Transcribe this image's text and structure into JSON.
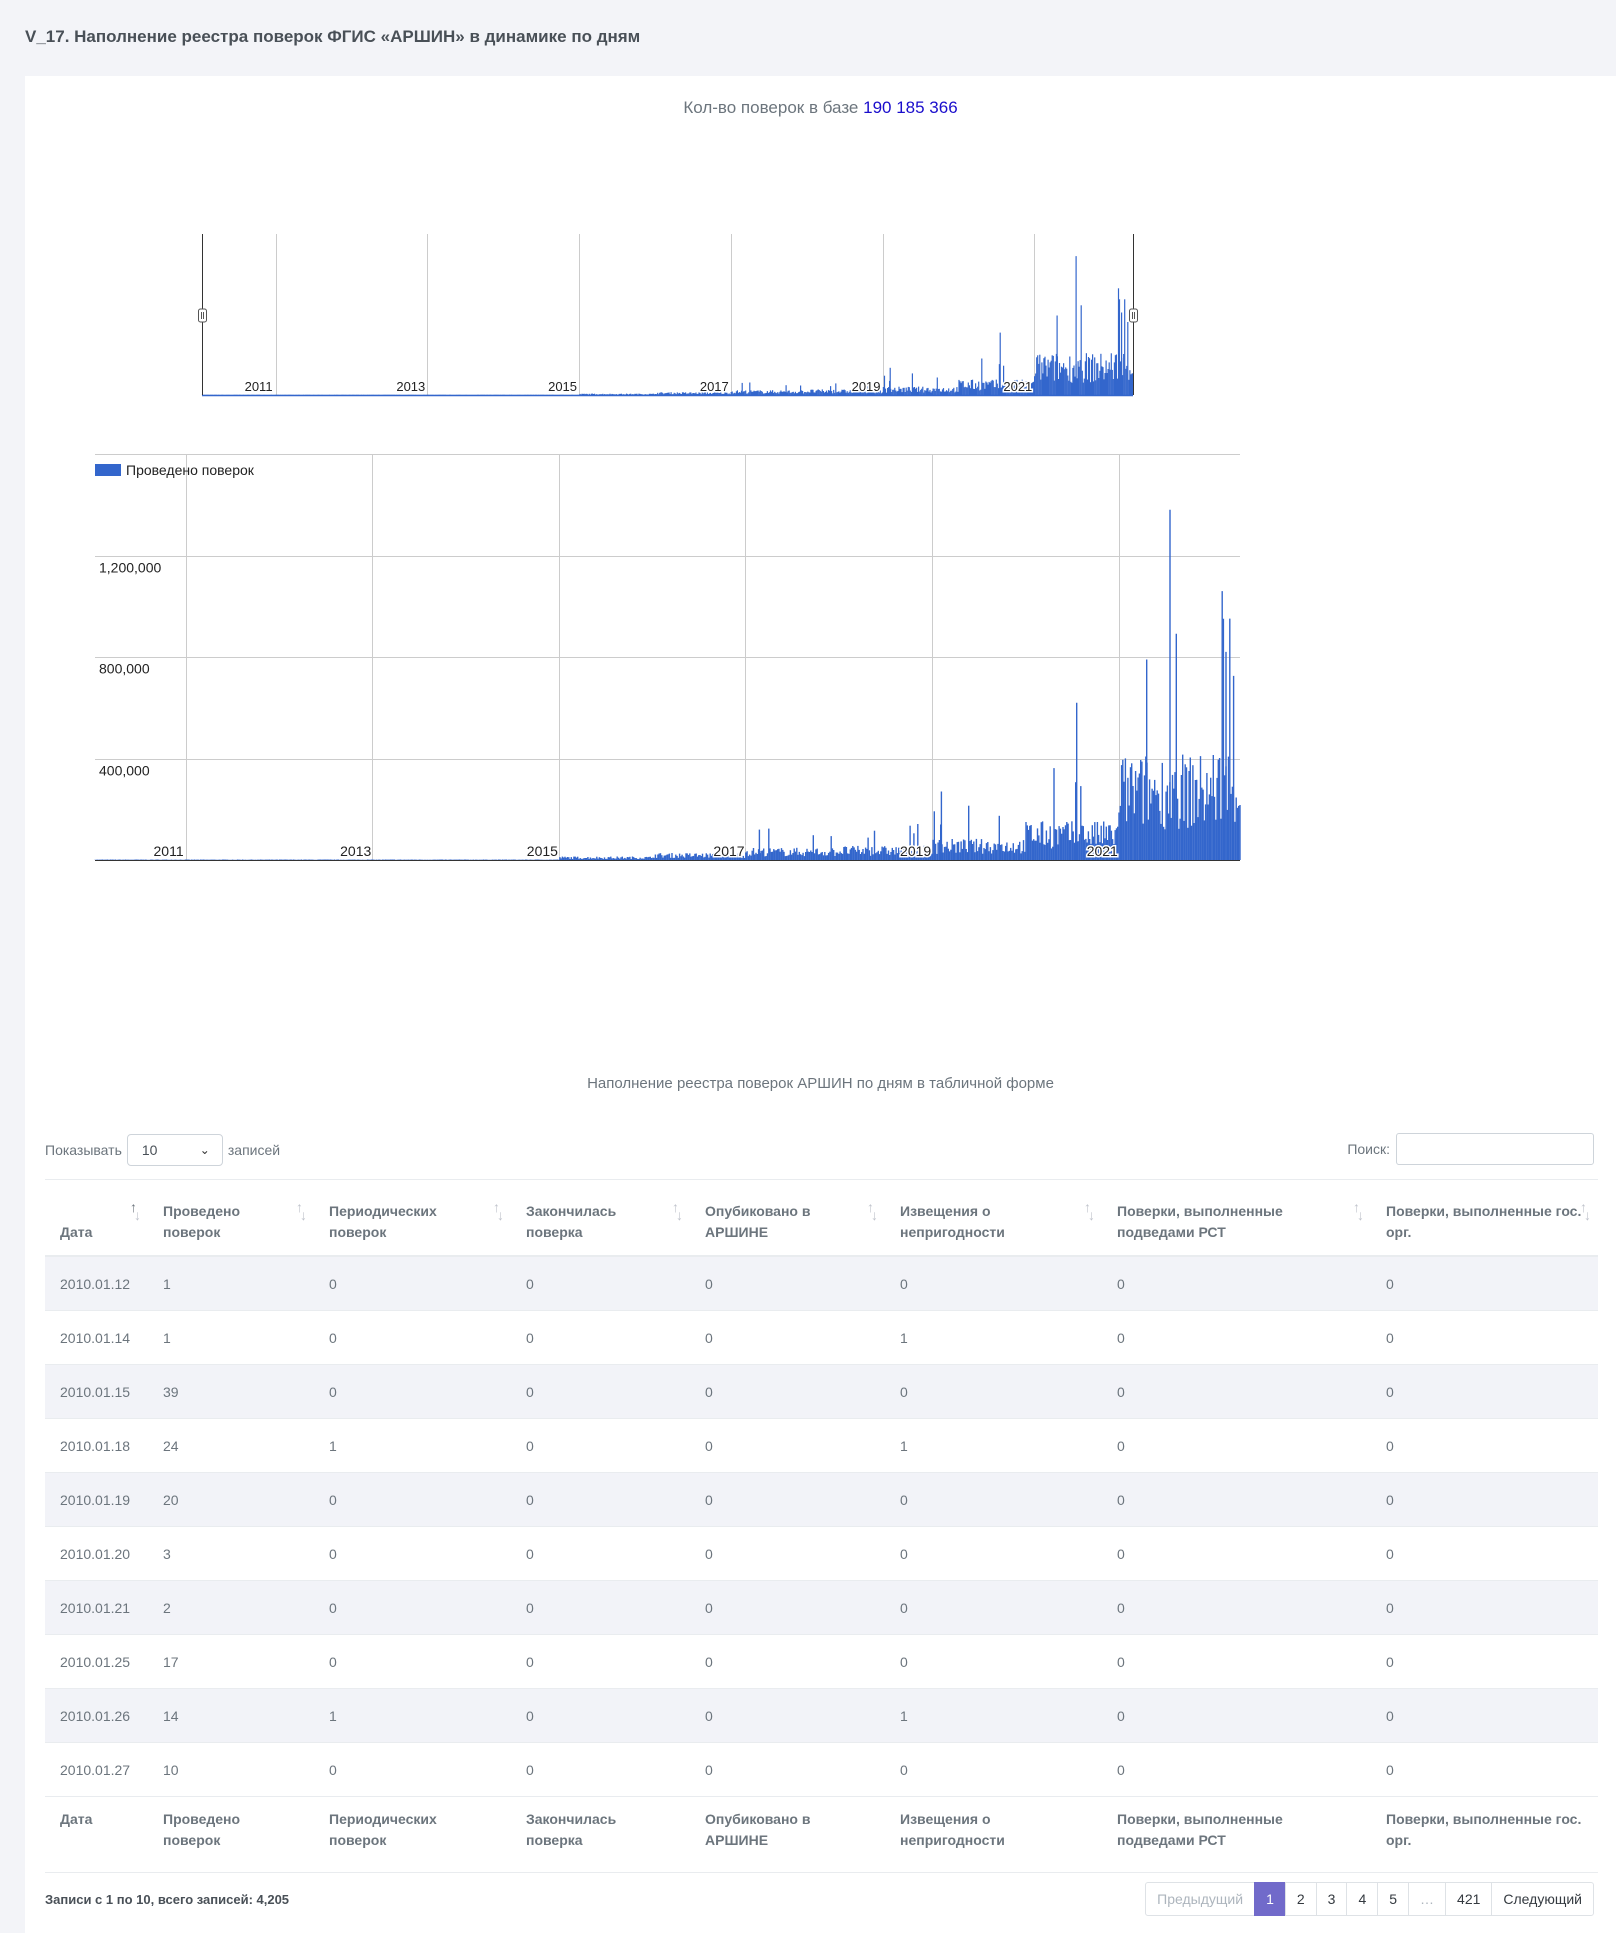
{
  "page_title": "V_17. Наполнение реестра поверок ФГИС «АРШИН» в динамике по дням",
  "count": {
    "label": "Кол-во поверок в базе",
    "value": "190 185 366"
  },
  "table_caption": "Наполнение реестра поверок АРШИН по дням в табличной форме",
  "length_control": {
    "prefix": "Показывать",
    "value": "10",
    "suffix": "записей"
  },
  "search": {
    "label": "Поиск:",
    "value": ""
  },
  "table": {
    "columns": [
      "Дата",
      "Проведено поверок",
      "Периодических поверок",
      "Закончилась поверка",
      "Опубиковано в АРШИНЕ",
      "Извещения о непригодности",
      "Поверки, выполненные подведами РСТ",
      "Поверки, выполненные гос. орг."
    ],
    "rows": [
      [
        "2010.01.12",
        "1",
        "0",
        "0",
        "0",
        "0",
        "0",
        "0"
      ],
      [
        "2010.01.14",
        "1",
        "0",
        "0",
        "0",
        "1",
        "0",
        "0"
      ],
      [
        "2010.01.15",
        "39",
        "0",
        "0",
        "0",
        "0",
        "0",
        "0"
      ],
      [
        "2010.01.18",
        "24",
        "1",
        "0",
        "0",
        "1",
        "0",
        "0"
      ],
      [
        "2010.01.19",
        "20",
        "0",
        "0",
        "0",
        "0",
        "0",
        "0"
      ],
      [
        "2010.01.20",
        "3",
        "0",
        "0",
        "0",
        "0",
        "0",
        "0"
      ],
      [
        "2010.01.21",
        "2",
        "0",
        "0",
        "0",
        "0",
        "0",
        "0"
      ],
      [
        "2010.01.25",
        "17",
        "0",
        "0",
        "0",
        "0",
        "0",
        "0"
      ],
      [
        "2010.01.26",
        "14",
        "1",
        "0",
        "0",
        "1",
        "0",
        "0"
      ],
      [
        "2010.01.27",
        "10",
        "0",
        "0",
        "0",
        "0",
        "0",
        "0"
      ]
    ]
  },
  "info": "Записи с 1 по 10, всего записей: 4,205",
  "pagination": {
    "prev": "Предыдущий",
    "pages": [
      "1",
      "2",
      "3",
      "4",
      "5"
    ],
    "ellipsis": "…",
    "last": "421",
    "next": "Следующий",
    "active": "1"
  },
  "colors": {
    "series": "#3366cc",
    "accent": "#716aca",
    "count_value": "#1a0dcc"
  },
  "chart_data": {
    "type": "bar",
    "series_name": "Проведено поверок",
    "x_ticks": [
      "2011",
      "2013",
      "2015",
      "2017",
      "2019",
      "2021"
    ],
    "x_range": [
      "2010.01.12",
      "2022.04"
    ],
    "y_ticks": [
      "400,000",
      "800,000",
      "1,200,000"
    ],
    "ylim": [
      0,
      1600000
    ],
    "grid": true,
    "legend_position": "top-left",
    "navigator": true,
    "approx_daily_levels": [
      {
        "period": "2010–2014",
        "value": 2000
      },
      {
        "period": "2015",
        "value": 10000
      },
      {
        "period": "2016",
        "value": 20000
      },
      {
        "period": "2017",
        "value": 35000
      },
      {
        "period": "2018",
        "value": 40000
      },
      {
        "period": "2019",
        "value": 60000
      },
      {
        "period": "2020",
        "value": 110000
      },
      {
        "period": "2021",
        "value": 300000
      },
      {
        "period": "2022",
        "value": 320000
      }
    ],
    "notable_peaks": [
      {
        "date": "2017",
        "value": 120000
      },
      {
        "date": "2019",
        "value": 270000
      },
      {
        "date": "2020",
        "value": 620000
      },
      {
        "date": "2021",
        "value": 790000
      },
      {
        "date": "2021",
        "value": 1380000
      },
      {
        "date": "2022",
        "value": 820000
      }
    ]
  }
}
